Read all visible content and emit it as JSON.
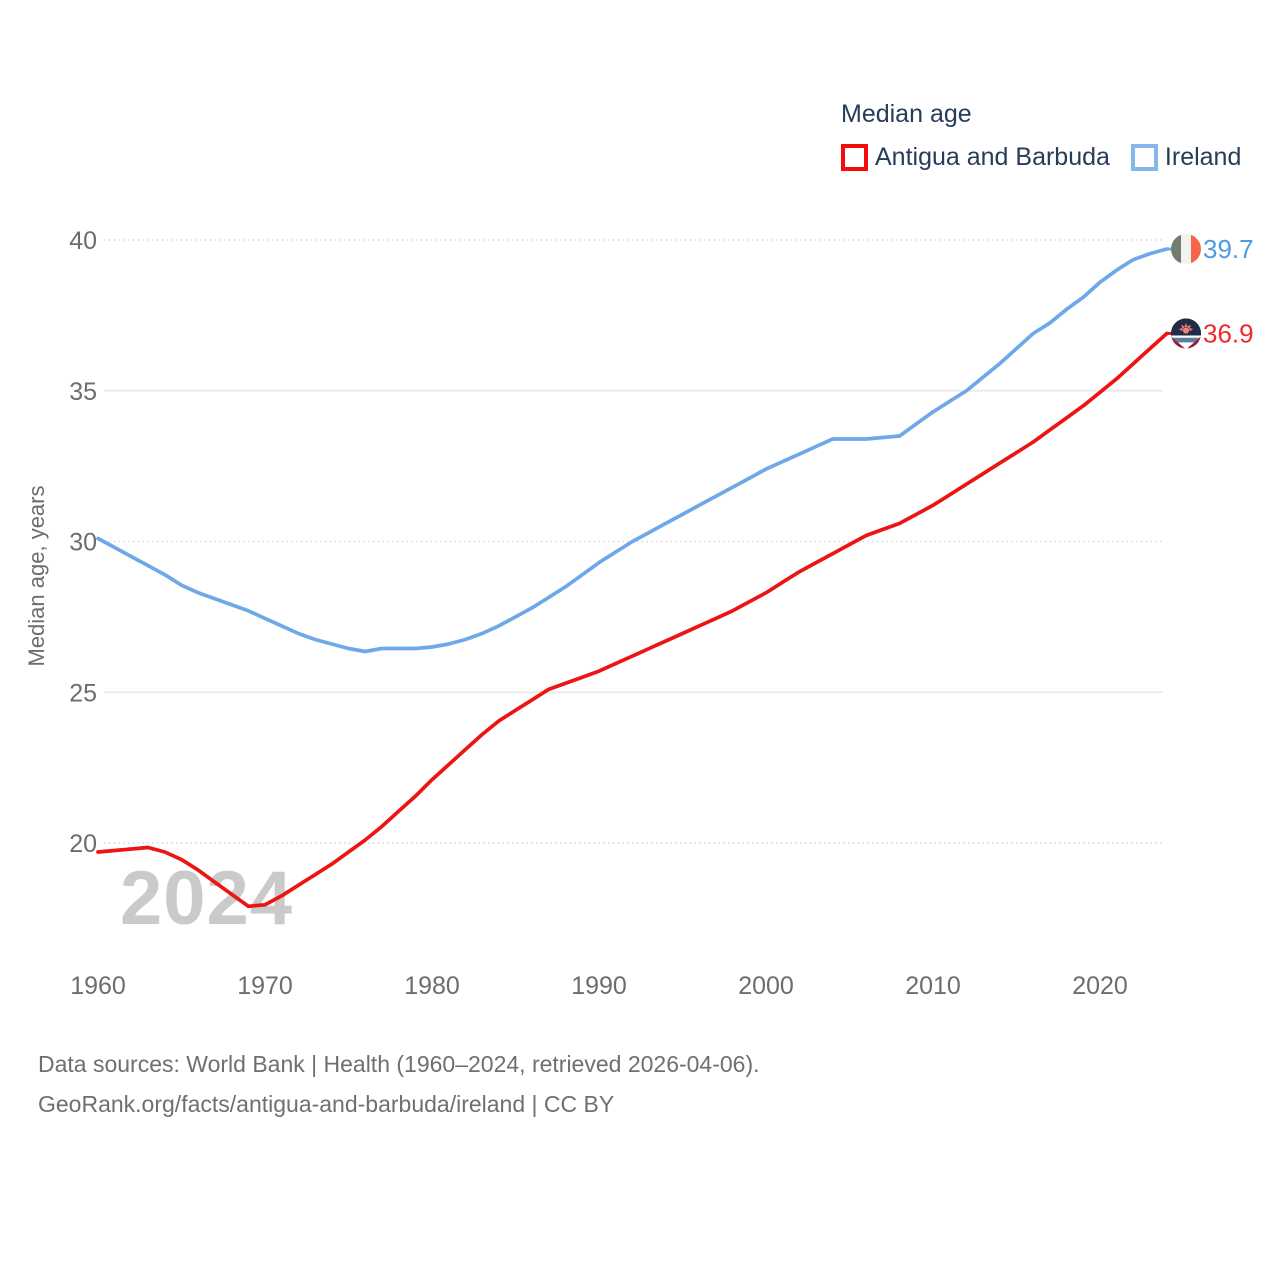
{
  "legend": {
    "title": "Median age",
    "items": [
      {
        "label": "Antigua and Barbuda",
        "swatch_color": "#F20D0D"
      },
      {
        "label": "Ireland",
        "swatch_color": "#85B7EA"
      }
    ]
  },
  "chart_data": {
    "type": "line",
    "title": "Median age",
    "ylabel": "Median age, years",
    "xlabel": "",
    "grid": "horizontal",
    "legend_position": "top-right",
    "watermark": "2024",
    "ylim": [
      17.5,
      40.5
    ],
    "xlim": [
      1960,
      2024
    ],
    "yticks": [
      20,
      25,
      30,
      35,
      40
    ],
    "xticks": [
      1960,
      1970,
      1980,
      1990,
      2000,
      2010,
      2020
    ],
    "x": [
      1960,
      1961,
      1962,
      1963,
      1964,
      1965,
      1966,
      1967,
      1968,
      1969,
      1970,
      1971,
      1972,
      1973,
      1974,
      1975,
      1976,
      1977,
      1978,
      1979,
      1980,
      1981,
      1982,
      1983,
      1984,
      1985,
      1986,
      1987,
      1988,
      1989,
      1990,
      1991,
      1992,
      1993,
      1994,
      1995,
      1996,
      1997,
      1998,
      1999,
      2000,
      2001,
      2002,
      2003,
      2004,
      2005,
      2006,
      2007,
      2008,
      2009,
      2010,
      2011,
      2012,
      2013,
      2014,
      2015,
      2016,
      2017,
      2018,
      2019,
      2020,
      2021,
      2022,
      2023,
      2024
    ],
    "series": [
      {
        "name": "Antigua and Barbuda",
        "key": "antigua-and-barbuda",
        "color": "#ED1414",
        "label_color": "#EF2A2A",
        "end_label": "36.9",
        "values": [
          19.7,
          19.75,
          19.8,
          19.85,
          19.7,
          19.45,
          19.1,
          18.7,
          18.3,
          17.9,
          17.95,
          18.25,
          18.6,
          18.95,
          19.3,
          19.7,
          20.1,
          20.55,
          21.05,
          21.55,
          22.1,
          22.6,
          23.1,
          23.6,
          24.05,
          24.4,
          24.75,
          25.1,
          25.3,
          25.5,
          25.7,
          25.95,
          26.2,
          26.45,
          26.7,
          26.95,
          27.2,
          27.45,
          27.7,
          28.0,
          28.3,
          28.65,
          29.0,
          29.3,
          29.6,
          29.9,
          30.2,
          30.4,
          30.6,
          30.9,
          31.2,
          31.55,
          31.9,
          32.25,
          32.6,
          32.95,
          33.3,
          33.7,
          34.1,
          34.5,
          34.95,
          35.4,
          35.9,
          36.4,
          36.9
        ]
      },
      {
        "name": "Ireland",
        "key": "ireland",
        "color": "#6FA8E8",
        "label_color": "#4F9BE2",
        "end_label": "39.7",
        "values": [
          30.1,
          29.8,
          29.5,
          29.2,
          28.9,
          28.55,
          28.3,
          28.1,
          27.9,
          27.7,
          27.45,
          27.2,
          26.95,
          26.75,
          26.6,
          26.45,
          26.35,
          26.45,
          26.45,
          26.45,
          26.5,
          26.6,
          26.75,
          26.95,
          27.2,
          27.5,
          27.8,
          28.15,
          28.5,
          28.9,
          29.3,
          29.65,
          30.0,
          30.3,
          30.6,
          30.9,
          31.2,
          31.5,
          31.8,
          32.1,
          32.4,
          32.65,
          32.9,
          33.15,
          33.4,
          33.4,
          33.4,
          33.45,
          33.5,
          33.9,
          34.3,
          34.65,
          35.0,
          35.45,
          35.9,
          36.4,
          36.9,
          37.25,
          37.7,
          38.1,
          38.6,
          39.0,
          39.35,
          39.55,
          39.7
        ]
      }
    ]
  },
  "flags": {
    "ireland": {
      "green": "#6E7D6E",
      "white": "#F2F2EE",
      "orange": "#F4654A"
    },
    "antigua": {
      "red": "#9A1C31",
      "black": "#222C48",
      "sun": "#EF8476",
      "blue": "#5B7CA3",
      "white": "#FFFFFF"
    }
  },
  "footer": {
    "line1": "Data sources: World Bank | Health (1960–2024, retrieved 2026-04-06).",
    "line2": "GeoRank.org/facts/antigua-and-barbuda/ireland | CC BY"
  }
}
